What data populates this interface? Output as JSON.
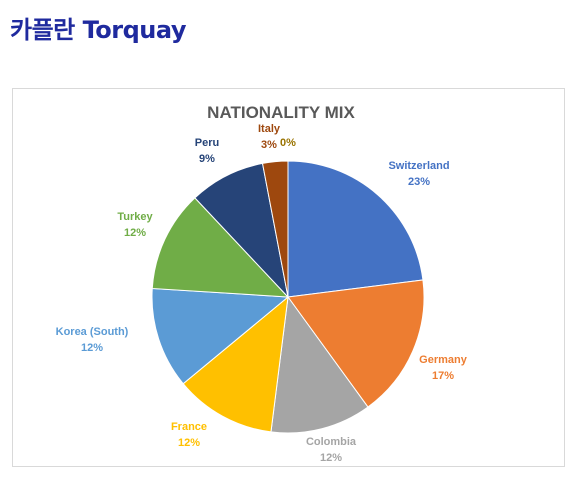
{
  "page": {
    "heading": "카플란 Torquay"
  },
  "chart_data": {
    "type": "pie",
    "title": "NATIONALITY MIX",
    "slices": [
      {
        "name": "Switzerland",
        "value": 23,
        "label": "23%",
        "color": "#4472c4"
      },
      {
        "name": "Germany",
        "value": 17,
        "label": "17%",
        "color": "#ed7d31"
      },
      {
        "name": "Colombia",
        "value": 12,
        "label": "12%",
        "color": "#a5a5a5"
      },
      {
        "name": "France",
        "value": 12,
        "label": "12%",
        "color": "#ffc000"
      },
      {
        "name": "Korea (South)",
        "value": 12,
        "label": "12%",
        "color": "#5b9bd5"
      },
      {
        "name": "Turkey",
        "value": 12,
        "label": "12%",
        "color": "#70ad47"
      },
      {
        "name": "Peru",
        "value": 9,
        "label": "9%",
        "color": "#264478"
      },
      {
        "name": "Italy",
        "value": 3,
        "label": "3%",
        "color": "#9e480e"
      },
      {
        "name": "",
        "value": 0,
        "label": "0%",
        "color": "#997300"
      }
    ],
    "legend": "none"
  }
}
